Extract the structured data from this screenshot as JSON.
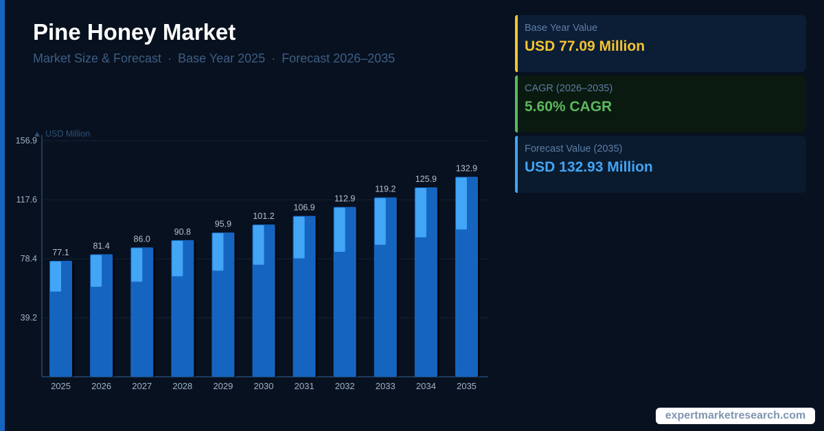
{
  "header": {
    "title": "Pine Honey Market",
    "subtitle_parts": [
      "Market Size & Forecast",
      "Base Year 2025",
      "Forecast 2026–2035"
    ],
    "separator": "·"
  },
  "cards": [
    {
      "label": "Base Year Value",
      "value": "USD 77.09 Million",
      "bg": "#0c1d36",
      "accent": "#f4c430",
      "value_color": "#f4c430"
    },
    {
      "label": "CAGR (2026–2035)",
      "value": "5.60% CAGR",
      "bg": "#0a1a10",
      "accent": "#5db85e",
      "value_color": "#5db85e"
    },
    {
      "label": "Forecast Value (2035)",
      "value": "USD 132.93 Million",
      "bg": "#0a1b2e",
      "accent": "#42a5f5",
      "value_color": "#42a5f5"
    }
  ],
  "watermark": "expertmarketresearch.com",
  "colors": {
    "background": "#08111f",
    "bar_dark": "#1565c0",
    "bar_light": "#42a5f5",
    "axis": "#1f3a5c",
    "grid": "#132338",
    "tick_text": "#9fb3c8",
    "value_label": "#b3c1d1",
    "unit_label": "#2e5077"
  },
  "chart_data": {
    "type": "bar",
    "ylabel": "USD Million",
    "ylabel_icon": "triangle-up-icon",
    "ylim": [
      0,
      156.9
    ],
    "yticks": [
      "39.2",
      "78.4",
      "117.6",
      "156.9"
    ],
    "grid": true,
    "categories": [
      "2025",
      "2026",
      "2027",
      "2028",
      "2029",
      "2030",
      "2031",
      "2032",
      "2033",
      "2034",
      "2035"
    ],
    "values": [
      77.1,
      81.4,
      86.0,
      90.8,
      95.9,
      101.2,
      106.9,
      112.9,
      119.2,
      125.9,
      132.9
    ],
    "value_labels": [
      "77.1",
      "81.4",
      "86.0",
      "90.8",
      "95.9",
      "101.2",
      "106.9",
      "112.9",
      "119.2",
      "125.9",
      "132.9"
    ]
  }
}
